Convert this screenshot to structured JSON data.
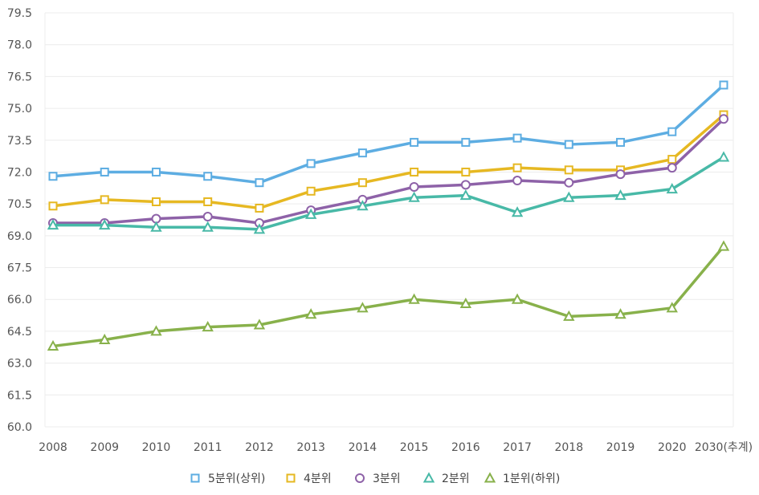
{
  "chart_data": {
    "type": "line",
    "title": "",
    "xlabel": "",
    "ylabel": "",
    "categories": [
      "2008",
      "2009",
      "2010",
      "2011",
      "2012",
      "2013",
      "2014",
      "2015",
      "2016",
      "2017",
      "2018",
      "2019",
      "2020",
      "2030(추계)"
    ],
    "ylim": [
      60.0,
      79.5
    ],
    "yticks": [
      "60.0",
      "61.5",
      "63.0",
      "64.5",
      "66.0",
      "67.5",
      "69.0",
      "70.5",
      "72.0",
      "73.5",
      "75.0",
      "76.5",
      "78.0",
      "79.5"
    ],
    "grid": true,
    "legend_position": "bottom",
    "series": [
      {
        "name": "5분위(상위)",
        "color": "#5dade2",
        "marker": "square",
        "values": [
          71.8,
          72.0,
          72.0,
          71.8,
          71.5,
          72.4,
          72.9,
          73.4,
          73.4,
          73.6,
          73.3,
          73.4,
          73.9,
          76.1
        ]
      },
      {
        "name": "4분위",
        "color": "#e6b822",
        "marker": "square",
        "values": [
          70.4,
          70.7,
          70.6,
          70.6,
          70.3,
          71.1,
          71.5,
          72.0,
          72.0,
          72.2,
          72.1,
          72.1,
          72.6,
          74.7
        ]
      },
      {
        "name": "3분위",
        "color": "#8e62a8",
        "marker": "circle",
        "values": [
          69.6,
          69.6,
          69.8,
          69.9,
          69.6,
          70.2,
          70.7,
          71.3,
          71.4,
          71.6,
          71.5,
          71.9,
          72.2,
          74.5
        ]
      },
      {
        "name": "2분위",
        "color": "#48b9a7",
        "marker": "triangle",
        "values": [
          69.5,
          69.5,
          69.4,
          69.4,
          69.3,
          70.0,
          70.4,
          70.8,
          70.9,
          70.1,
          70.8,
          70.9,
          71.2,
          72.7
        ]
      },
      {
        "name": "1분위(하위)",
        "color": "#88b14b",
        "marker": "triangle",
        "values": [
          63.8,
          64.1,
          64.5,
          64.7,
          64.8,
          65.3,
          65.6,
          66.0,
          65.8,
          66.0,
          65.2,
          65.3,
          65.6,
          68.5
        ]
      }
    ]
  }
}
